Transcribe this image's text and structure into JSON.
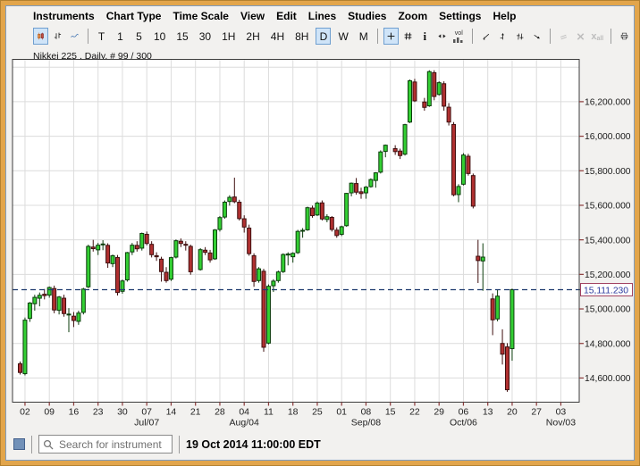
{
  "menu": {
    "items": [
      "Instruments",
      "Chart Type",
      "Time Scale",
      "View",
      "Edit",
      "Lines",
      "Studies",
      "Zoom",
      "Settings",
      "Help"
    ]
  },
  "toolbar": {
    "timescales": [
      "T",
      "1",
      "5",
      "10",
      "15",
      "30",
      "1H",
      "2H",
      "4H",
      "8H",
      "D",
      "W",
      "M"
    ],
    "selected_timescale": "D",
    "vol_label": "vol",
    "delete_all_label": "all",
    "delete_label": "x",
    "more_label": "»"
  },
  "chart_header": {
    "title": "Nikkei 225 , Daily, # 99 / 300"
  },
  "chart_data": {
    "type": "candlestick",
    "title": "Nikkei 225 , Daily, # 99 / 300",
    "last_price": 15111.23,
    "last_price_label": "15,111.230",
    "ylim": [
      14460,
      16445
    ],
    "grid": true,
    "yticks": [
      {
        "value": 16200,
        "label": "16,200.000"
      },
      {
        "value": 16000,
        "label": "16,000.000"
      },
      {
        "value": 15800,
        "label": "15,800.000"
      },
      {
        "value": 15600,
        "label": "15,600.000"
      },
      {
        "value": 15400,
        "label": "15,400.000"
      },
      {
        "value": 15200,
        "label": "15,200.000"
      },
      {
        "value": 15000,
        "label": "15,000.000"
      },
      {
        "value": 14800,
        "label": "14,800.000"
      },
      {
        "value": 14600,
        "label": "14,600.000"
      }
    ],
    "extra_gridline_values": [
      16400
    ],
    "xticks": [
      {
        "label": "02",
        "slot": 1
      },
      {
        "label": "09",
        "slot": 6
      },
      {
        "label": "16",
        "slot": 11
      },
      {
        "label": "23",
        "slot": 16
      },
      {
        "label": "30",
        "slot": 21
      },
      {
        "label": "07",
        "slot": 26,
        "sub": "Jul/07"
      },
      {
        "label": "14",
        "slot": 31
      },
      {
        "label": "21",
        "slot": 36
      },
      {
        "label": "28",
        "slot": 41
      },
      {
        "label": "04",
        "slot": 46,
        "sub": "Aug/04"
      },
      {
        "label": "11",
        "slot": 51
      },
      {
        "label": "18",
        "slot": 56
      },
      {
        "label": "25",
        "slot": 61
      },
      {
        "label": "01",
        "slot": 66
      },
      {
        "label": "08",
        "slot": 71,
        "sub": "Sep/08"
      },
      {
        "label": "15",
        "slot": 76
      },
      {
        "label": "22",
        "slot": 81
      },
      {
        "label": "29",
        "slot": 86
      },
      {
        "label": "06",
        "slot": 91,
        "sub": "Oct/06"
      },
      {
        "label": "13",
        "slot": 96
      },
      {
        "label": "20",
        "slot": 101
      },
      {
        "label": "27",
        "slot": 106
      },
      {
        "label": "03",
        "slot": 111,
        "sub": "Nov/03"
      }
    ],
    "colors": {
      "up_fill": "#33cf33",
      "up_stroke": "#0b3d0b",
      "down_fill": "#b03030",
      "down_stroke": "#3f0f0f",
      "grid": "#dcdcdc",
      "plot_border": "#3c3c3c",
      "tick": "#8b3a3a",
      "axis_text": "#1a1a1a",
      "last_price_line": "#1e3a6e",
      "price_box_border": "#a04060",
      "price_box_text": "#2b3a9e"
    },
    "columns": [
      "date",
      "slot",
      "open",
      "high",
      "low",
      "close"
    ],
    "candles": [
      [
        "May 30",
        0,
        14682,
        14695,
        14620,
        14632
      ],
      [
        "Jun 02",
        1,
        14625,
        14950,
        14615,
        14935
      ],
      [
        "Jun 03",
        2,
        14945,
        15040,
        14925,
        15034
      ],
      [
        "Jun 04",
        3,
        15030,
        15082,
        14990,
        15067
      ],
      [
        "Jun 05",
        4,
        15062,
        15095,
        15015,
        15079
      ],
      [
        "Jun 06",
        5,
        15085,
        15115,
        15055,
        15077
      ],
      [
        "Jun 09",
        6,
        15080,
        15130,
        15065,
        15124
      ],
      [
        "Jun 10",
        7,
        15118,
        15135,
        14975,
        14994
      ],
      [
        "Jun 11",
        8,
        14992,
        15075,
        14968,
        15069
      ],
      [
        "Jun 12",
        9,
        15062,
        15082,
        14955,
        14973
      ],
      [
        "Jun 13",
        10,
        14968,
        15005,
        14865,
        14970
      ],
      [
        "Jun 16",
        11,
        14958,
        14982,
        14895,
        14933
      ],
      [
        "Jun 17",
        12,
        14928,
        14990,
        14908,
        14976
      ],
      [
        "Jun 18",
        13,
        14980,
        15122,
        14968,
        15115
      ],
      [
        "Jun 19",
        14,
        15128,
        15372,
        15120,
        15362
      ],
      [
        "Jun 20",
        15,
        15358,
        15400,
        15332,
        15349
      ],
      [
        "Jun 23",
        16,
        15342,
        15382,
        15312,
        15369
      ],
      [
        "Jun 24",
        17,
        15372,
        15398,
        15340,
        15376
      ],
      [
        "Jun 25",
        18,
        15368,
        15380,
        15238,
        15266
      ],
      [
        "Jun 26",
        19,
        15262,
        15315,
        15242,
        15308
      ],
      [
        "Jun 27",
        20,
        15298,
        15312,
        15078,
        15095
      ],
      [
        "Jun 30",
        21,
        15102,
        15170,
        15088,
        15162
      ],
      [
        "Jul 01",
        22,
        15168,
        15330,
        15158,
        15326
      ],
      [
        "Jul 02",
        23,
        15330,
        15382,
        15312,
        15369
      ],
      [
        "Jul 03",
        24,
        15368,
        15392,
        15332,
        15348
      ],
      [
        "Jul 04",
        25,
        15352,
        15442,
        15338,
        15437
      ],
      [
        "Jul 07",
        26,
        15432,
        15448,
        15368,
        15379
      ],
      [
        "Jul 08",
        27,
        15374,
        15392,
        15298,
        15314
      ],
      [
        "Jul 09",
        28,
        15308,
        15328,
        15278,
        15302
      ],
      [
        "Jul 10",
        29,
        15288,
        15302,
        15158,
        15216
      ],
      [
        "Jul 11",
        30,
        15212,
        15242,
        15152,
        15164
      ],
      [
        "Jul 14",
        31,
        15172,
        15302,
        15162,
        15297
      ],
      [
        "Jul 15",
        32,
        15300,
        15402,
        15292,
        15395
      ],
      [
        "Jul 16",
        33,
        15392,
        15408,
        15358,
        15379
      ],
      [
        "Jul 17",
        34,
        15374,
        15392,
        15338,
        15370
      ],
      [
        "Jul 18",
        35,
        15362,
        15372,
        15198,
        15215
      ],
      [
        "Jul 22",
        37,
        15228,
        15352,
        15222,
        15343
      ],
      [
        "Jul 23",
        38,
        15340,
        15358,
        15312,
        15328
      ],
      [
        "Jul 24",
        39,
        15324,
        15342,
        15268,
        15284
      ],
      [
        "Jul 25",
        40,
        15290,
        15462,
        15284,
        15457
      ],
      [
        "Jul 28",
        41,
        15460,
        15538,
        15448,
        15529
      ],
      [
        "Jul 29",
        42,
        15532,
        15628,
        15522,
        15618
      ],
      [
        "Jul 30",
        43,
        15622,
        15658,
        15598,
        15646
      ],
      [
        "Jul 31",
        44,
        15648,
        15760,
        15612,
        15621
      ],
      [
        "Aug 01",
        45,
        15618,
        15632,
        15512,
        15523
      ],
      [
        "Aug 04",
        46,
        15522,
        15542,
        15442,
        15474
      ],
      [
        "Aug 05",
        47,
        15468,
        15488,
        15308,
        15320
      ],
      [
        "Aug 06",
        48,
        15308,
        15322,
        15128,
        15159
      ],
      [
        "Aug 07",
        49,
        15164,
        15242,
        15152,
        15232
      ],
      [
        "Aug 08",
        50,
        15218,
        15232,
        14752,
        14778
      ],
      [
        "Aug 11",
        51,
        14802,
        15142,
        14795,
        15131
      ],
      [
        "Aug 12",
        52,
        15134,
        15172,
        15098,
        15161
      ],
      [
        "Aug 13",
        53,
        15164,
        15222,
        15152,
        15214
      ],
      [
        "Aug 14",
        54,
        15216,
        15322,
        15208,
        15315
      ],
      [
        "Aug 15",
        55,
        15312,
        15328,
        15252,
        15318
      ],
      [
        "Aug 18",
        56,
        15302,
        15328,
        15268,
        15322
      ],
      [
        "Aug 19",
        57,
        15326,
        15458,
        15318,
        15449
      ],
      [
        "Aug 20",
        58,
        15452,
        15468,
        15412,
        15455
      ],
      [
        "Aug 21",
        59,
        15458,
        15592,
        15452,
        15586
      ],
      [
        "Aug 22",
        60,
        15584,
        15598,
        15528,
        15540
      ],
      [
        "Aug 25",
        61,
        15544,
        15622,
        15538,
        15613
      ],
      [
        "Aug 26",
        62,
        15614,
        15628,
        15512,
        15521
      ],
      [
        "Aug 27",
        63,
        15518,
        15548,
        15502,
        15534
      ],
      [
        "Aug 28",
        64,
        15530,
        15538,
        15448,
        15460
      ],
      [
        "Aug 29",
        65,
        15456,
        15472,
        15412,
        15425
      ],
      [
        "Sep 01",
        66,
        15432,
        15482,
        15422,
        15476
      ],
      [
        "Sep 02",
        67,
        15482,
        15672,
        15476,
        15669
      ],
      [
        "Sep 03",
        68,
        15672,
        15732,
        15652,
        15728
      ],
      [
        "Sep 04",
        69,
        15726,
        15758,
        15662,
        15676
      ],
      [
        "Sep 05",
        70,
        15678,
        15702,
        15638,
        15668
      ],
      [
        "Sep 08",
        71,
        15672,
        15712,
        15638,
        15705
      ],
      [
        "Sep 09",
        72,
        15708,
        15756,
        15702,
        15749
      ],
      [
        "Sep 10",
        73,
        15744,
        15792,
        15702,
        15788
      ],
      [
        "Sep 11",
        74,
        15792,
        15918,
        15784,
        15909
      ],
      [
        "Sep 12",
        75,
        15912,
        15952,
        15878,
        15948
      ],
      [
        "Sep 16",
        77,
        15928,
        15948,
        15892,
        15911
      ],
      [
        "Sep 17",
        78,
        15914,
        15928,
        15868,
        15888
      ],
      [
        "Sep 18",
        79,
        15896,
        16072,
        15888,
        16067
      ],
      [
        "Sep 19",
        80,
        16082,
        16328,
        16076,
        16321
      ],
      [
        "Sep 22",
        81,
        16314,
        16332,
        16198,
        16205
      ],
      [
        "Sep 24",
        83,
        16198,
        16222,
        16148,
        16167
      ],
      [
        "Sep 25",
        84,
        16176,
        16382,
        16170,
        16374
      ],
      [
        "Sep 26",
        85,
        16368,
        16382,
        16208,
        16230
      ],
      [
        "Sep 29",
        86,
        16242,
        16318,
        16235,
        16310
      ],
      [
        "Sep 30",
        87,
        16304,
        16318,
        16148,
        16174
      ],
      [
        "Oct 01",
        88,
        16168,
        16192,
        16062,
        16082
      ],
      [
        "Oct 02",
        89,
        16068,
        16082,
        15652,
        15661
      ],
      [
        "Oct 03",
        90,
        15662,
        15722,
        15618,
        15709
      ],
      [
        "Oct 06",
        91,
        15722,
        15902,
        15715,
        15891
      ],
      [
        "Oct 07",
        92,
        15884,
        15898,
        15772,
        15784
      ],
      [
        "Oct 08",
        93,
        15772,
        15784,
        15582,
        15595
      ],
      [
        "Oct 09",
        94,
        15305,
        15400,
        15150,
        15280
      ],
      [
        "Oct 10",
        95,
        15278,
        15380,
        15105,
        15300
      ],
      [
        "Oct 14",
        97,
        15058,
        15090,
        14848,
        14937
      ],
      [
        "Oct 15",
        98,
        14942,
        15112,
        14928,
        15074
      ],
      [
        "Oct 16",
        99,
        14800,
        14882,
        14678,
        14738
      ],
      [
        "Oct 17",
        100,
        14780,
        14802,
        14520,
        14532
      ],
      [
        "Oct 20",
        101,
        14770,
        15118,
        14700,
        15111.23
      ]
    ]
  },
  "statusbar": {
    "search_placeholder": "Search for instrument",
    "timestamp": "19 Oct 2014 11:00:00 EDT"
  }
}
